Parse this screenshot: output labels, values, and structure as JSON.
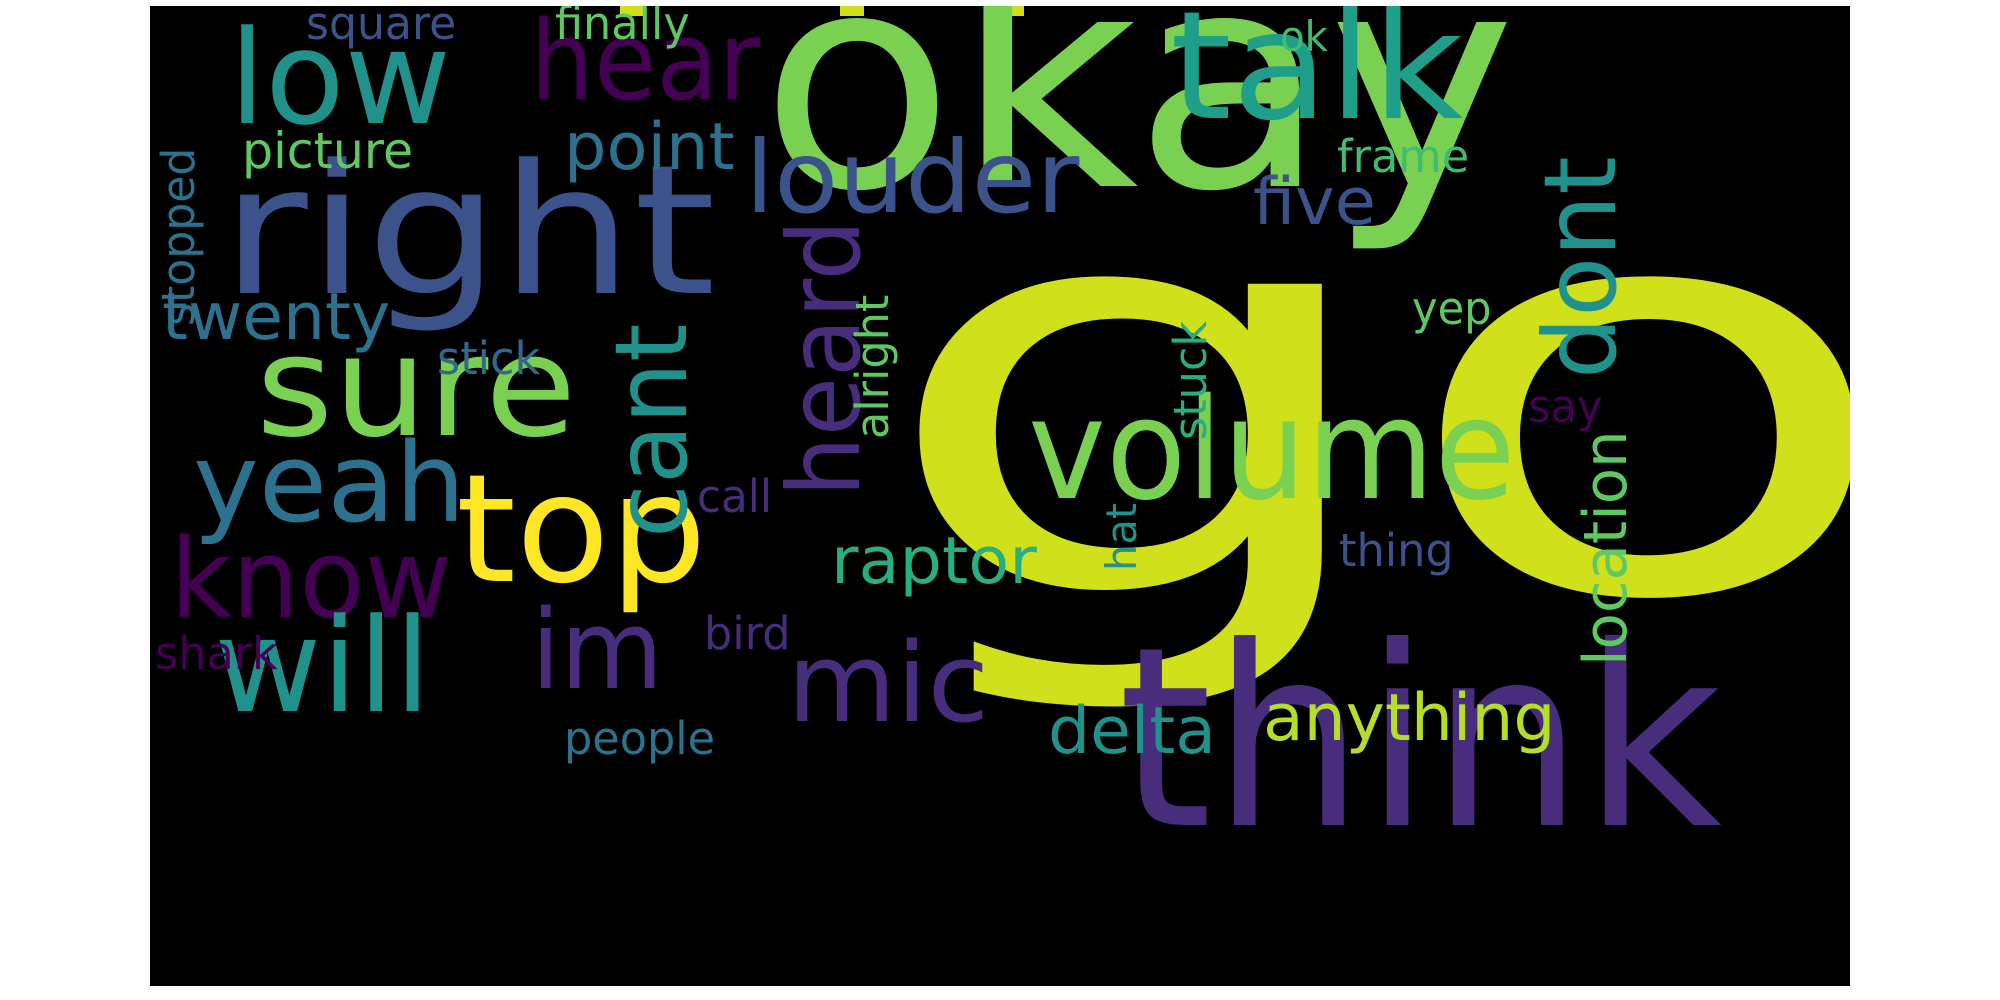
{
  "word_cloud": {
    "background_color": "#000000",
    "words": {
      "got": "got",
      "okay": "okay",
      "think": "think",
      "right": "right",
      "talk": "talk",
      "low": "low",
      "hear": "hear",
      "sure": "sure",
      "top": "top",
      "volume": "volume",
      "louder": "louder",
      "yeah": "yeah",
      "know": "know",
      "will": "will",
      "im": "im",
      "mic": "mic",
      "point": "point",
      "twenty": "twenty",
      "picture": "picture",
      "square": "square",
      "finally": "finally",
      "ok": "ok",
      "frame": "frame",
      "five": "five",
      "yep": "yep",
      "say": "say",
      "thing": "thing",
      "anything": "anything",
      "delta": "delta",
      "raptor": "raptor",
      "call": "call",
      "stick": "stick",
      "shark": "shark",
      "bird": "bird",
      "people": "people",
      "stopped": "stopped",
      "heard": "heard",
      "cant": "cant",
      "alright": "alright",
      "dont": "dont",
      "stuck": "stuck",
      "hat": "hat",
      "location": "location"
    }
  }
}
